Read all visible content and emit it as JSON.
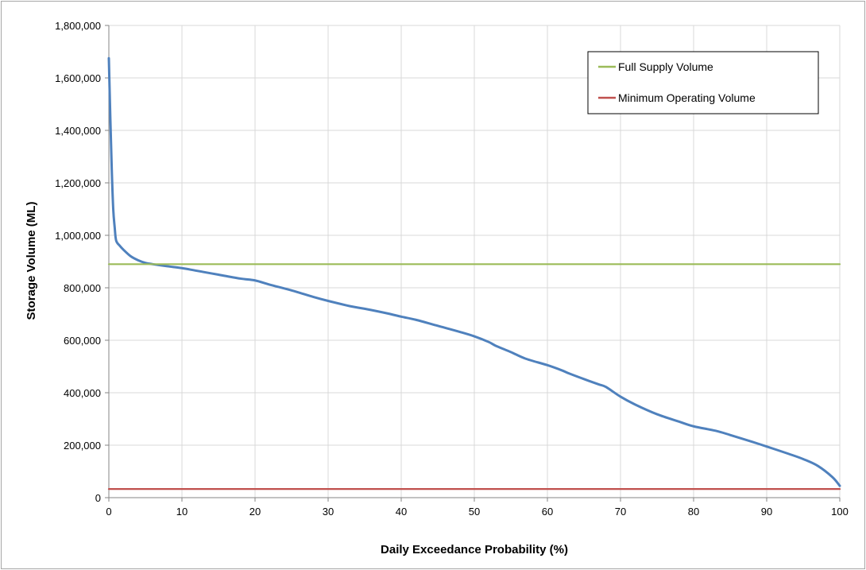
{
  "chart_data": {
    "type": "line",
    "xlabel": "Daily Exceedance Probability (%)",
    "ylabel": "Storage Volume (ML)",
    "xlim": [
      0,
      100
    ],
    "ylim": [
      0,
      1800000
    ],
    "x_ticks": [
      "0",
      "10",
      "20",
      "30",
      "40",
      "50",
      "60",
      "70",
      "80",
      "90",
      "100"
    ],
    "y_ticks": [
      "0",
      "200,000",
      "400,000",
      "600,000",
      "800,000",
      "1,000,000",
      "1,200,000",
      "1,400,000",
      "1,600,000",
      "1,800,000"
    ],
    "grid": true,
    "legend_position": "top-right",
    "series": [
      {
        "name": "",
        "color": "#4f81bd",
        "x": [
          0,
          0.2,
          0.4,
          0.6,
          0.8,
          1,
          1.5,
          2,
          3,
          4,
          5,
          6,
          8,
          10,
          12,
          15,
          18,
          20,
          22,
          25,
          28,
          30,
          33,
          35,
          38,
          40,
          42,
          45,
          48,
          50,
          52,
          53,
          55,
          57,
          60,
          62,
          63,
          65,
          67,
          68,
          70,
          72,
          75,
          78,
          80,
          83,
          85,
          88,
          90,
          93,
          95,
          97,
          99,
          100
        ],
        "y": [
          1675000,
          1450000,
          1250000,
          1100000,
          1030000,
          980000,
          960000,
          945000,
          920000,
          905000,
          895000,
          890000,
          882000,
          875000,
          865000,
          850000,
          835000,
          828000,
          812000,
          790000,
          765000,
          750000,
          730000,
          720000,
          703000,
          690000,
          678000,
          655000,
          632000,
          615000,
          593000,
          578000,
          555000,
          530000,
          505000,
          485000,
          473000,
          452000,
          432000,
          422000,
          385000,
          355000,
          318000,
          290000,
          272000,
          255000,
          239000,
          213000,
          195000,
          167000,
          147000,
          121000,
          78000,
          45000
        ]
      },
      {
        "name": "Full Supply Volume",
        "color": "#9bbb59",
        "x": [
          0,
          100
        ],
        "y": [
          890000,
          890000
        ]
      },
      {
        "name": "Minimum Operating Volume",
        "color": "#c0504d",
        "x": [
          0,
          100
        ],
        "y": [
          33000,
          33000
        ]
      }
    ]
  }
}
